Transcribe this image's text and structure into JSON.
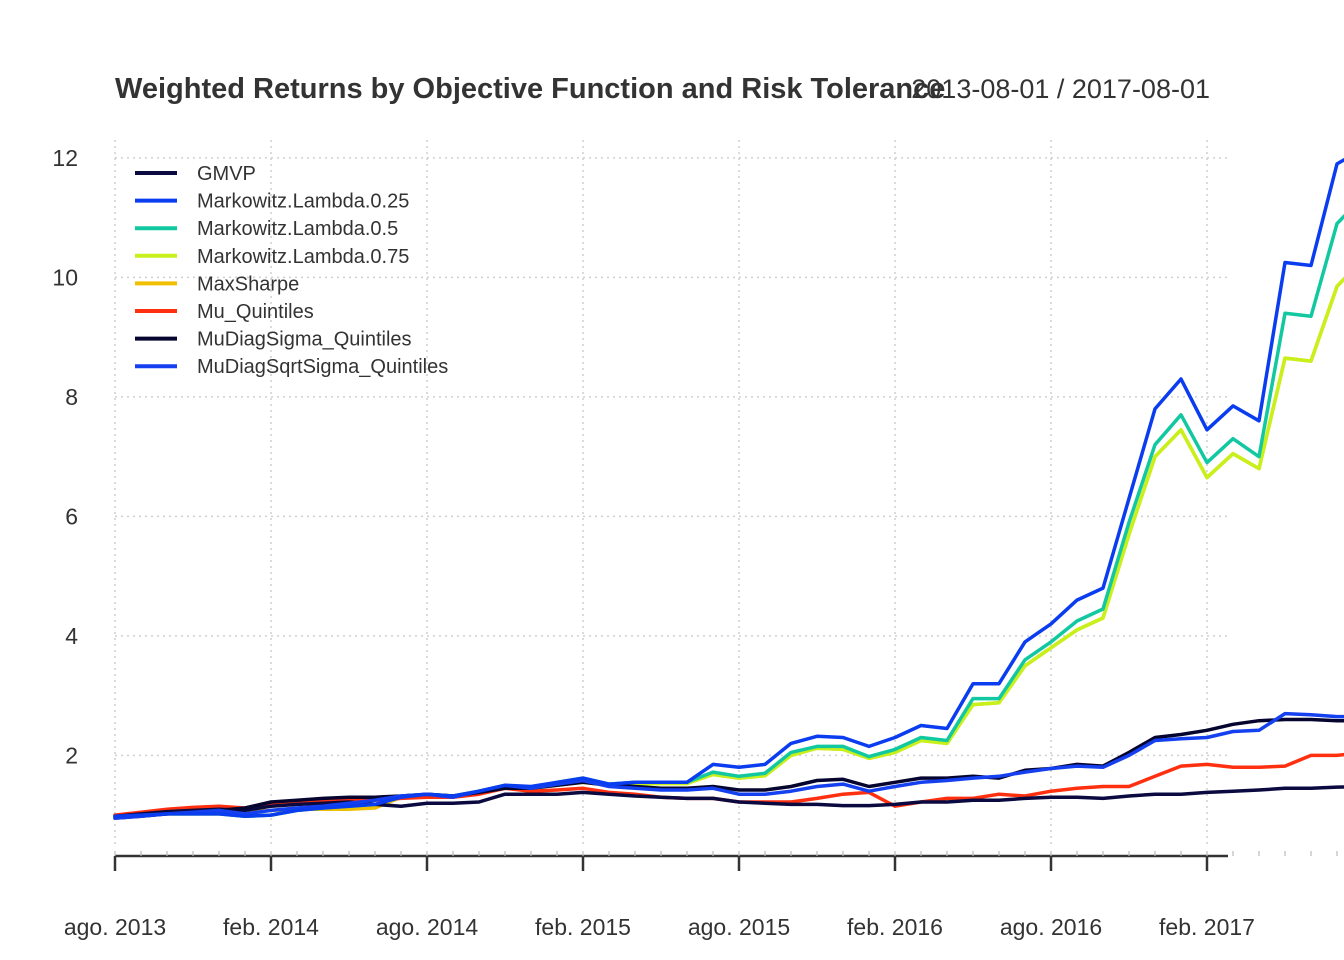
{
  "chart_data": {
    "type": "line",
    "title": "Weighted Returns by Objective Function and Risk Tolerance",
    "date_range": "2013-08-01 / 2017-08-01",
    "xlabel": "",
    "ylabel": "",
    "ylim": [
      0.45,
      12.3
    ],
    "yticks": [
      2,
      4,
      6,
      8,
      10,
      12
    ],
    "grid": true,
    "legend_position": "top-left",
    "x_tick_labels": [
      {
        "label": "ago. 2013",
        "date": "2013-08"
      },
      {
        "label": "feb. 2014",
        "date": "2014-02"
      },
      {
        "label": "ago. 2014",
        "date": "2014-08"
      },
      {
        "label": "feb. 2015",
        "date": "2015-02"
      },
      {
        "label": "ago. 2015",
        "date": "2015-08"
      },
      {
        "label": "feb. 2016",
        "date": "2016-02"
      },
      {
        "label": "ago. 2016",
        "date": "2016-08"
      },
      {
        "label": "feb. 2017",
        "date": "2017-02"
      }
    ],
    "x": [
      "2013-08",
      "2013-09",
      "2013-10",
      "2013-11",
      "2013-12",
      "2014-01",
      "2014-02",
      "2014-03",
      "2014-04",
      "2014-05",
      "2014-06",
      "2014-07",
      "2014-08",
      "2014-09",
      "2014-10",
      "2014-11",
      "2014-12",
      "2015-01",
      "2015-02",
      "2015-03",
      "2015-04",
      "2015-05",
      "2015-06",
      "2015-07",
      "2015-08",
      "2015-09",
      "2015-10",
      "2015-11",
      "2015-12",
      "2016-01",
      "2016-02",
      "2016-03",
      "2016-04",
      "2016-05",
      "2016-06",
      "2016-07",
      "2016-08",
      "2016-09",
      "2016-10",
      "2016-11",
      "2016-12",
      "2017-01",
      "2017-02",
      "2017-03",
      "2017-04",
      "2017-05",
      "2017-06",
      "2017-07",
      "2017-08"
    ],
    "series": [
      {
        "name": "GMVP",
        "color": "#0a0a40",
        "values": [
          0.98,
          1.02,
          1.06,
          1.08,
          1.1,
          1.08,
          1.15,
          1.18,
          1.2,
          1.22,
          1.18,
          1.15,
          1.2,
          1.2,
          1.22,
          1.35,
          1.35,
          1.35,
          1.38,
          1.35,
          1.32,
          1.3,
          1.28,
          1.28,
          1.22,
          1.2,
          1.18,
          1.18,
          1.16,
          1.16,
          1.18,
          1.22,
          1.22,
          1.25,
          1.25,
          1.28,
          1.3,
          1.3,
          1.28,
          1.32,
          1.35,
          1.35,
          1.38,
          1.4,
          1.42,
          1.45,
          1.45,
          1.47,
          1.48
        ]
      },
      {
        "name": "Markowitz.Lambda.0.25",
        "color": "#0a3cf0",
        "values": [
          0.98,
          1.0,
          1.02,
          1.02,
          1.02,
          0.98,
          1.0,
          1.08,
          1.12,
          1.15,
          1.18,
          1.3,
          1.35,
          1.32,
          1.4,
          1.5,
          1.48,
          1.55,
          1.62,
          1.52,
          1.55,
          1.55,
          1.55,
          1.85,
          1.8,
          1.85,
          2.2,
          2.32,
          2.3,
          2.15,
          2.3,
          2.5,
          2.45,
          3.2,
          3.2,
          3.9,
          4.2,
          4.6,
          4.8,
          6.3,
          7.8,
          8.3,
          7.45,
          7.85,
          7.6,
          10.25,
          10.2,
          11.9,
          12.15
        ]
      },
      {
        "name": "Markowitz.Lambda.0.5",
        "color": "#12c8a0",
        "values": [
          0.98,
          1.0,
          1.02,
          1.02,
          1.02,
          0.98,
          1.0,
          1.08,
          1.12,
          1.15,
          1.18,
          1.3,
          1.35,
          1.32,
          1.4,
          1.5,
          1.45,
          1.55,
          1.62,
          1.52,
          1.55,
          1.55,
          1.55,
          1.72,
          1.65,
          1.7,
          2.05,
          2.15,
          2.15,
          1.98,
          2.1,
          2.3,
          2.25,
          2.95,
          2.95,
          3.6,
          3.9,
          4.25,
          4.45,
          5.9,
          7.2,
          7.7,
          6.9,
          7.3,
          7.0,
          9.4,
          9.35,
          10.9,
          11.35
        ]
      },
      {
        "name": "Markowitz.Lambda.0.75",
        "color": "#c8f01a",
        "values": [
          0.98,
          1.0,
          1.02,
          1.02,
          1.02,
          0.98,
          1.0,
          1.08,
          1.12,
          1.15,
          1.18,
          1.3,
          1.35,
          1.32,
          1.4,
          1.5,
          1.45,
          1.55,
          1.62,
          1.5,
          1.52,
          1.53,
          1.53,
          1.68,
          1.62,
          1.66,
          2.0,
          2.12,
          2.1,
          1.95,
          2.05,
          2.25,
          2.2,
          2.85,
          2.88,
          3.5,
          3.8,
          4.1,
          4.3,
          5.7,
          7.0,
          7.45,
          6.65,
          7.05,
          6.8,
          8.65,
          8.6,
          9.85,
          10.3
        ]
      },
      {
        "name": "MaxSharpe",
        "color": "#f0c000",
        "values": [
          0.98,
          1.02,
          1.05,
          1.06,
          1.08,
          1.05,
          1.08,
          1.1,
          1.1,
          1.1,
          1.12,
          1.3,
          1.35,
          1.32,
          1.4,
          1.5,
          1.45,
          1.5,
          1.55,
          1.5,
          1.52,
          1.53,
          1.53,
          1.68,
          1.62,
          1.66,
          2.0,
          2.12,
          2.1,
          1.95,
          2.05,
          2.25,
          2.2,
          2.85,
          2.88,
          3.5,
          3.8,
          4.1,
          4.3,
          5.7,
          7.0,
          7.45,
          6.65,
          7.05,
          6.8,
          8.65,
          8.6,
          9.85,
          10.3
        ]
      },
      {
        "name": "Mu_Quintiles",
        "color": "#ff3010",
        "values": [
          1.0,
          1.05,
          1.1,
          1.13,
          1.15,
          1.12,
          1.2,
          1.22,
          1.25,
          1.25,
          1.25,
          1.28,
          1.3,
          1.3,
          1.35,
          1.45,
          1.4,
          1.42,
          1.45,
          1.38,
          1.35,
          1.3,
          1.28,
          1.28,
          1.22,
          1.22,
          1.22,
          1.28,
          1.35,
          1.38,
          1.15,
          1.22,
          1.28,
          1.28,
          1.35,
          1.32,
          1.4,
          1.45,
          1.48,
          1.48,
          1.65,
          1.82,
          1.85,
          1.8,
          1.8,
          1.82,
          2.0,
          2.0,
          2.05
        ]
      },
      {
        "name": "MuDiagSigma_Quintiles",
        "color": "#050530",
        "values": [
          0.95,
          0.98,
          1.02,
          1.05,
          1.08,
          1.12,
          1.22,
          1.25,
          1.28,
          1.3,
          1.3,
          1.32,
          1.35,
          1.32,
          1.38,
          1.45,
          1.45,
          1.5,
          1.55,
          1.5,
          1.48,
          1.45,
          1.45,
          1.48,
          1.42,
          1.42,
          1.48,
          1.58,
          1.6,
          1.48,
          1.55,
          1.62,
          1.62,
          1.65,
          1.62,
          1.75,
          1.78,
          1.85,
          1.82,
          2.05,
          2.3,
          2.35,
          2.42,
          2.52,
          2.58,
          2.6,
          2.6,
          2.58,
          2.58
        ]
      },
      {
        "name": "MuDiagSqrtSigma_Quintiles",
        "color": "#1440f0",
        "values": [
          0.95,
          0.98,
          1.02,
          1.05,
          1.08,
          1.02,
          1.08,
          1.12,
          1.15,
          1.2,
          1.25,
          1.32,
          1.35,
          1.3,
          1.4,
          1.5,
          1.45,
          1.52,
          1.58,
          1.48,
          1.45,
          1.42,
          1.42,
          1.45,
          1.35,
          1.35,
          1.4,
          1.48,
          1.52,
          1.4,
          1.48,
          1.55,
          1.58,
          1.62,
          1.65,
          1.72,
          1.78,
          1.82,
          1.8,
          2.0,
          2.25,
          2.28,
          2.3,
          2.4,
          2.42,
          2.7,
          2.68,
          2.65,
          2.65
        ]
      }
    ]
  }
}
